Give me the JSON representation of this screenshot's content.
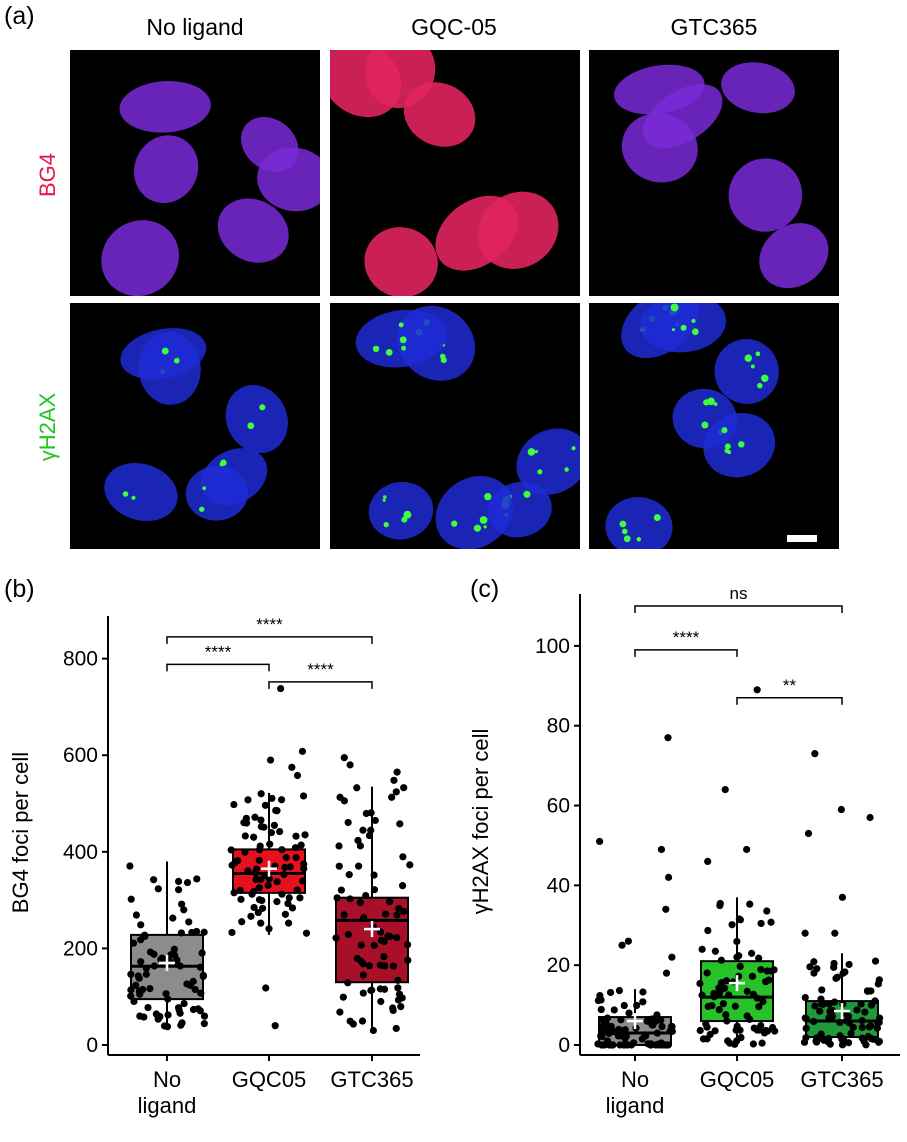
{
  "panel_a": {
    "letter": "(a)",
    "columns": [
      "No ligand",
      "GQC-05",
      "GTC365"
    ],
    "rows": [
      {
        "label": "BG4",
        "color": "#e8174b"
      },
      {
        "label": "γH2AX",
        "color": "#21c421"
      }
    ],
    "colors": {
      "nucleus": "#1f2bd6",
      "bg4": "#e0245e",
      "foci": "#3cff3c",
      "scalebar": "#ffffff"
    }
  },
  "panel_b": {
    "letter": "(b)"
  },
  "panel_c": {
    "letter": "(c)"
  },
  "chart_data": [
    {
      "type": "box",
      "ylabel": "BG4 foci per cell",
      "xlabel": "",
      "categories": [
        "No\nligand",
        "GQC05",
        "GTC365"
      ],
      "category_lines": [
        [
          "No",
          "ligand"
        ],
        [
          "GQC05"
        ],
        [
          "GTC365"
        ]
      ],
      "ylim": [
        0,
        880
      ],
      "yticks": [
        0,
        200,
        400,
        600,
        800
      ],
      "colors": [
        "#8c8c8c",
        "#e8101f",
        "#a8102a"
      ],
      "boxes": [
        {
          "min": 35,
          "q1": 95,
          "median": 163,
          "q3": 228,
          "max": 380,
          "mean": 170
        },
        {
          "min": 228,
          "q1": 315,
          "median": 355,
          "q3": 405,
          "max": 522,
          "mean": 365
        },
        {
          "min": 30,
          "q1": 130,
          "median": 258,
          "q3": 305,
          "max": 535,
          "mean": 240
        }
      ],
      "outliers": [
        [],
        [
          40,
          118,
          558,
          575,
          590,
          608,
          738
        ],
        [
          30,
          548,
          565,
          580,
          595
        ]
      ],
      "comparisons": [
        {
          "from": 0,
          "to": 1,
          "y": 788,
          "label": "****"
        },
        {
          "from": 1,
          "to": 2,
          "y": 752,
          "label": "****"
        },
        {
          "from": 0,
          "to": 2,
          "y": 845,
          "label": "****"
        }
      ]
    },
    {
      "type": "box",
      "ylabel": "γH2AX foci per cell",
      "xlabel": "",
      "categories": [
        "No\nligand",
        "GQC05",
        "GTC365"
      ],
      "category_lines": [
        [
          "No",
          "ligand"
        ],
        [
          "GQC05"
        ],
        [
          "GTC365"
        ]
      ],
      "ylim": [
        0,
        112
      ],
      "yticks": [
        0,
        20,
        40,
        60,
        80,
        100
      ],
      "colors": [
        "#8c8c8c",
        "#27c229",
        "#1f9a3a"
      ],
      "boxes": [
        {
          "min": 0,
          "q1": 0,
          "median": 3,
          "q3": 7,
          "max": 14,
          "mean": 6
        },
        {
          "min": 0,
          "q1": 6,
          "median": 12,
          "q3": 21,
          "max": 37,
          "mean": 15.5
        },
        {
          "min": 0,
          "q1": 2,
          "median": 6,
          "q3": 11,
          "max": 23,
          "mean": 8.5
        }
      ],
      "outliers": [
        [
          18,
          22,
          25,
          26,
          34,
          42,
          49,
          51,
          77
        ],
        [
          46,
          49,
          64,
          89
        ],
        [
          28,
          28,
          37,
          53,
          57,
          59,
          73
        ]
      ],
      "comparisons": [
        {
          "from": 0,
          "to": 1,
          "y": 99,
          "label": "****"
        },
        {
          "from": 1,
          "to": 2,
          "y": 87,
          "label": "**"
        },
        {
          "from": 0,
          "to": 2,
          "y": 110,
          "label": "ns"
        }
      ]
    }
  ]
}
